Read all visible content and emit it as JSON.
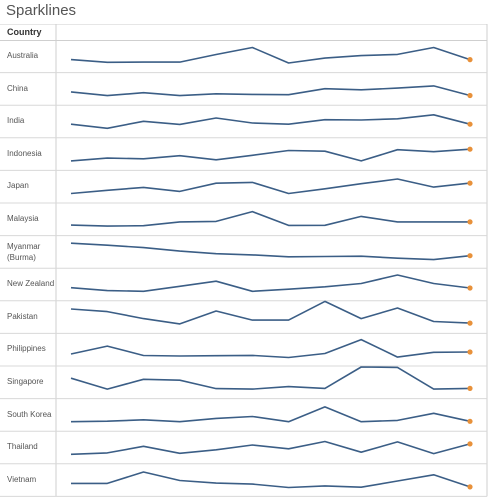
{
  "title": "Sparklines",
  "column_header": "Country",
  "colors": {
    "line": "#3b5e86",
    "endpoint": "#e8913a",
    "divider": "#d8d8d8",
    "panel_border": "#cfcfcf"
  },
  "chart_data": {
    "type": "line",
    "title": "Sparklines",
    "row_header": "Country",
    "grid": true,
    "countries": [
      "Australia",
      "China",
      "India",
      "Indonesia",
      "Japan",
      "Malaysia",
      "Myanmar (Burma)",
      "New Zealand",
      "Pakistan",
      "Philippines",
      "Singapore",
      "South Korea",
      "Thailand",
      "Vietnam"
    ],
    "x": [
      1,
      2,
      3,
      4,
      5,
      6,
      7,
      8,
      9,
      10,
      11,
      12
    ],
    "series": [
      {
        "name": "Australia",
        "values": [
          0.22,
          0.05,
          0.06,
          0.06,
          0.55,
          1.0,
          0.0,
          0.32,
          0.48,
          0.56,
          1.0,
          0.22
        ]
      },
      {
        "name": "China",
        "values": [
          0.24,
          0.0,
          0.19,
          0.0,
          0.12,
          0.08,
          0.06,
          0.45,
          0.38,
          0.49,
          0.63,
          0.01
        ]
      },
      {
        "name": "India",
        "values": [
          0.26,
          0.0,
          0.45,
          0.25,
          0.66,
          0.34,
          0.26,
          0.55,
          0.53,
          0.61,
          0.87,
          0.26
        ]
      },
      {
        "name": "Indonesia",
        "values": [
          0.0,
          0.18,
          0.13,
          0.33,
          0.07,
          0.36,
          0.67,
          0.62,
          0.0,
          0.72,
          0.59,
          0.75
        ]
      },
      {
        "name": "Japan",
        "values": [
          0.0,
          0.2,
          0.39,
          0.13,
          0.66,
          0.71,
          0.0,
          0.3,
          0.63,
          0.93,
          0.41,
          0.67
        ]
      },
      {
        "name": "Malaysia",
        "values": [
          0.06,
          0.0,
          0.02,
          0.27,
          0.3,
          0.93,
          0.04,
          0.05,
          0.62,
          0.27,
          0.27,
          0.27
        ]
      },
      {
        "name": "Myanmar (Burma)",
        "values": [
          1.0,
          0.87,
          0.71,
          0.49,
          0.32,
          0.24,
          0.12,
          0.14,
          0.16,
          0.03,
          -0.06,
          0.19
        ]
      },
      {
        "name": "New Zealand",
        "values": [
          0.23,
          0.04,
          0.0,
          0.32,
          0.65,
          0.0,
          0.13,
          0.29,
          0.5,
          1.05,
          0.5,
          0.21
        ]
      },
      {
        "name": "Pakistan",
        "values": [
          0.96,
          0.79,
          0.34,
          0.0,
          0.83,
          0.24,
          0.24,
          1.45,
          0.34,
          1.02,
          0.15,
          0.05
        ]
      },
      {
        "name": "Philippines",
        "values": [
          0.16,
          0.67,
          0.06,
          0.03,
          0.05,
          0.07,
          -0.07,
          0.19,
          1.09,
          -0.04,
          0.27,
          0.29
        ]
      },
      {
        "name": "Singapore",
        "values": [
          0.7,
          0.0,
          0.63,
          0.57,
          0.03,
          0.0,
          0.16,
          0.04,
          1.42,
          1.4,
          0.0,
          0.04
        ]
      },
      {
        "name": "South Korea",
        "values": [
          0.0,
          0.03,
          0.12,
          0.0,
          0.21,
          0.33,
          0.0,
          0.95,
          0.0,
          0.08,
          0.54,
          0.02
        ]
      },
      {
        "name": "Thailand",
        "values": [
          0.0,
          0.09,
          0.51,
          0.06,
          0.29,
          0.6,
          0.35,
          0.82,
          0.13,
          0.8,
          0.04,
          0.67
        ]
      },
      {
        "name": "Vietnam",
        "values": [
          0.22,
          0.22,
          0.96,
          0.41,
          0.24,
          0.18,
          -0.04,
          0.06,
          -0.02,
          0.38,
          0.78,
          0.0
        ]
      }
    ]
  }
}
